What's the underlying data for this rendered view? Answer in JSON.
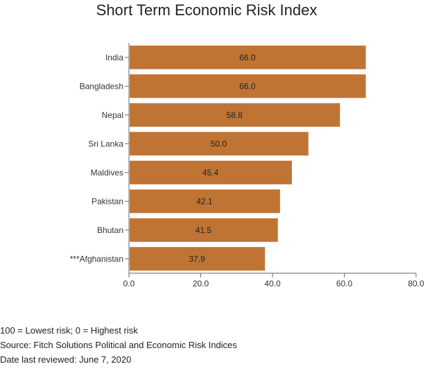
{
  "chart_data": {
    "type": "bar",
    "orientation": "horizontal",
    "title": "Short Term Economic Risk Index",
    "categories": [
      "India",
      "Bangladesh",
      "Nepal",
      "Sri Lanka",
      "Maldives",
      "Pakistan",
      "Bhutan",
      "***Afghanistan"
    ],
    "values": [
      66.0,
      66.0,
      58.8,
      50.0,
      45.4,
      42.1,
      41.5,
      37.9
    ],
    "value_labels": [
      "66.0",
      "66.0",
      "58.8",
      "50.0",
      "45.4",
      "42.1",
      "41.5",
      "37.9"
    ],
    "xlim": [
      0,
      80
    ],
    "xticks": [
      "0.0",
      "20.0",
      "40.0",
      "60.0",
      "80.0"
    ],
    "xlabel": "",
    "ylabel": "",
    "grid": false,
    "bar_color": "#c07434",
    "axis_color": "#666666"
  },
  "notes": {
    "scale": "100 = Lowest risk; 0 = Highest risk",
    "source": "Fitch Solutions Political and Economic Risk Indices",
    "reviewed": "Date last reviewed: June 7, 2020"
  }
}
